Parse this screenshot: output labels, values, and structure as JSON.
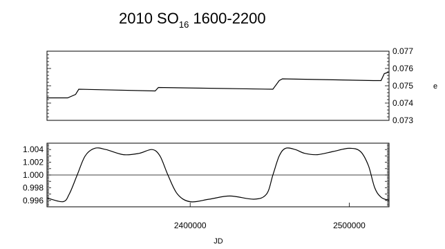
{
  "chart_data": [
    {
      "type": "line",
      "title": {
        "main": "2010 SO",
        "subscript": "16",
        "suffix": " 1600-2200"
      },
      "ylabel": "e",
      "xlim": [
        2310000,
        2525000
      ],
      "ylim": [
        0.073,
        0.077
      ],
      "yticks": [
        "0.077",
        "0.076",
        "0.075",
        "0.074",
        "0.073"
      ],
      "ytick_values": [
        0.077,
        0.076,
        0.075,
        0.074,
        0.073
      ],
      "series": [
        {
          "x": [
            2310000,
            2323000,
            2328000,
            2330000,
            2378000,
            2380000,
            2452000,
            2456000,
            2458000,
            2515000,
            2520000,
            2522000,
            2525000
          ],
          "y": [
            0.0743,
            0.0743,
            0.0745,
            0.0748,
            0.0747,
            0.0749,
            0.0748,
            0.0753,
            0.0754,
            0.0753,
            0.0753,
            0.0757,
            0.0758
          ]
        }
      ]
    },
    {
      "type": "line",
      "xlabel": "JD",
      "xlim": [
        2310000,
        2525000
      ],
      "ylim": [
        0.995,
        1.005
      ],
      "xticks": [
        "2400000",
        "2500000"
      ],
      "xtick_values": [
        2400000,
        2500000
      ],
      "yticks": [
        "1.004",
        "1.002",
        "1.000",
        "0.998",
        "0.996"
      ],
      "ytick_values": [
        1.004,
        1.002,
        1.0,
        0.998,
        0.996
      ],
      "reference_line": 1.0,
      "series": [
        {
          "x": [
            2310000,
            2320000,
            2324000,
            2329000,
            2334000,
            2340000,
            2347000,
            2358000,
            2368000,
            2376000,
            2381000,
            2386000,
            2392000,
            2400000,
            2412000,
            2425000,
            2440000,
            2448000,
            2452000,
            2456000,
            2460000,
            2466000,
            2472000,
            2480000,
            2490000,
            2500000,
            2507000,
            2512000,
            2516000,
            2520000,
            2525000
          ],
          "y": [
            0.9964,
            0.9958,
            0.997,
            1.0,
            1.003,
            1.0042,
            1.004,
            1.0032,
            1.0034,
            1.004,
            1.003,
            1.0,
            0.997,
            0.9958,
            0.9962,
            0.9967,
            0.9962,
            0.997,
            1.0,
            1.003,
            1.0042,
            1.004,
            1.0034,
            1.0032,
            1.0037,
            1.0042,
            1.0037,
            1.0015,
            0.998,
            0.9965,
            0.996
          ]
        }
      ]
    }
  ]
}
